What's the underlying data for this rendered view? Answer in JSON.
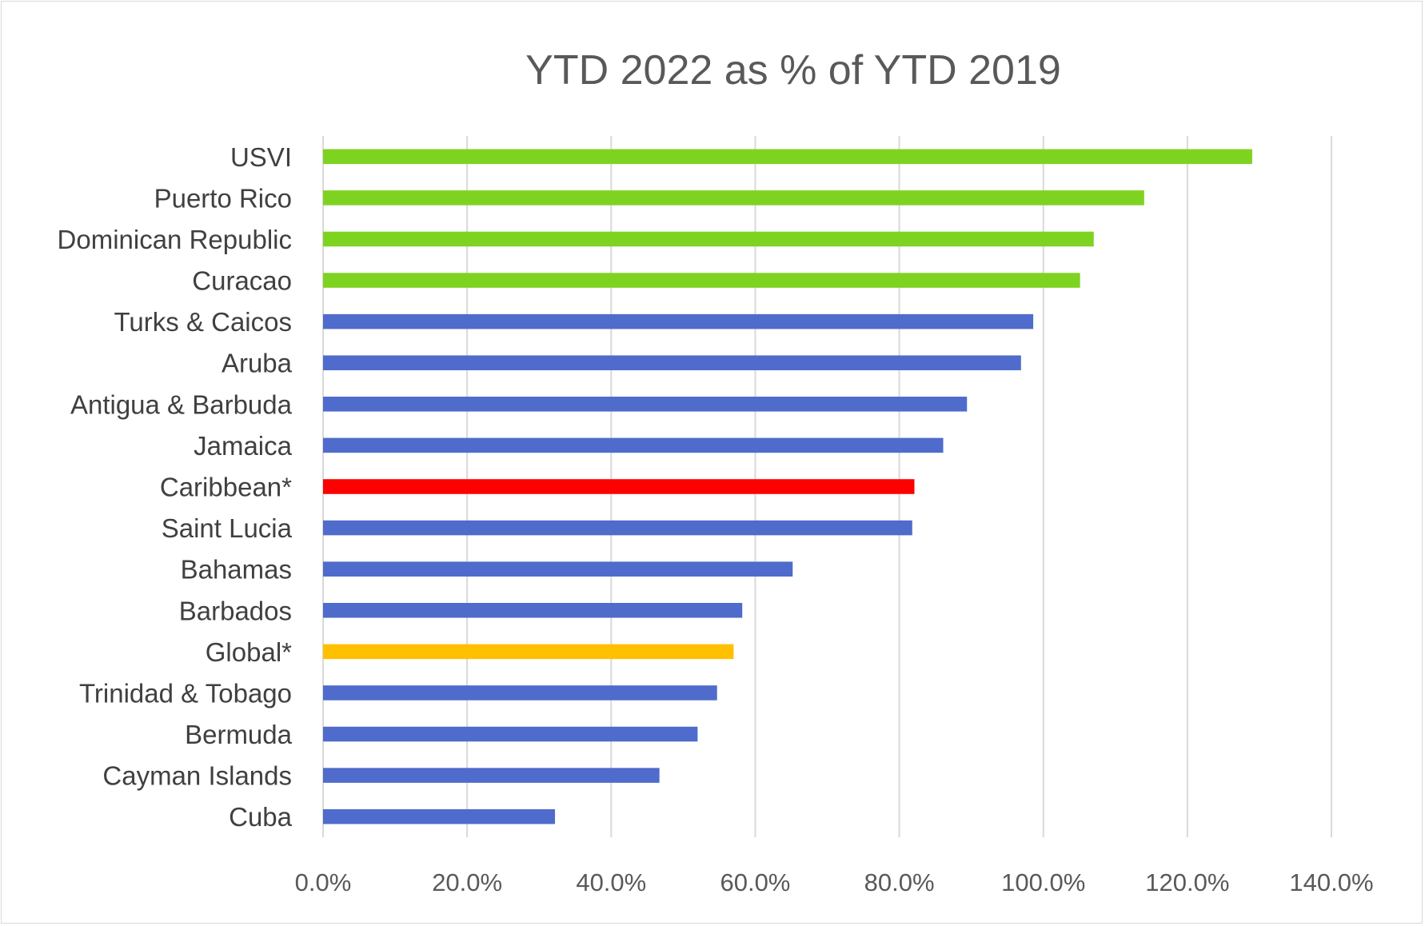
{
  "chart_data": {
    "type": "bar",
    "orientation": "horizontal",
    "title": "YTD 2022 as % of YTD 2019",
    "xlabel": "",
    "ylabel": "",
    "xlim": [
      0,
      140
    ],
    "x_ticks": [
      "0.0%",
      "20.0%",
      "40.0%",
      "60.0%",
      "80.0%",
      "100.0%",
      "120.0%",
      "140.0%"
    ],
    "grid": "vertical major gridlines",
    "legend": "none",
    "categories": [
      "USVI",
      "Puerto Rico",
      "Dominican Republic",
      "Curacao",
      "Turks & Caicos",
      "Aruba",
      "Antigua & Barbuda",
      "Jamaica",
      "Caribbean*",
      "Saint Lucia",
      "Bahamas",
      "Barbados",
      "Global*",
      "Trinidad & Tobago",
      "Bermuda",
      "Cayman Islands",
      "Cuba"
    ],
    "values": [
      129.0,
      114.0,
      107.0,
      105.1,
      98.6,
      96.9,
      89.4,
      86.1,
      82.1,
      81.8,
      65.2,
      58.2,
      57.0,
      54.7,
      52.0,
      46.7,
      32.2
    ],
    "bar_colors": [
      "#7ED321",
      "#7ED321",
      "#7ED321",
      "#7ED321",
      "#4F6BCB",
      "#4F6BCB",
      "#4F6BCB",
      "#4F6BCB",
      "#FF0000",
      "#4F6BCB",
      "#4F6BCB",
      "#4F6BCB",
      "#FFC000",
      "#4F6BCB",
      "#4F6BCB",
      "#4F6BCB",
      "#4F6BCB"
    ],
    "gridline_color": "#D9D9D9"
  }
}
